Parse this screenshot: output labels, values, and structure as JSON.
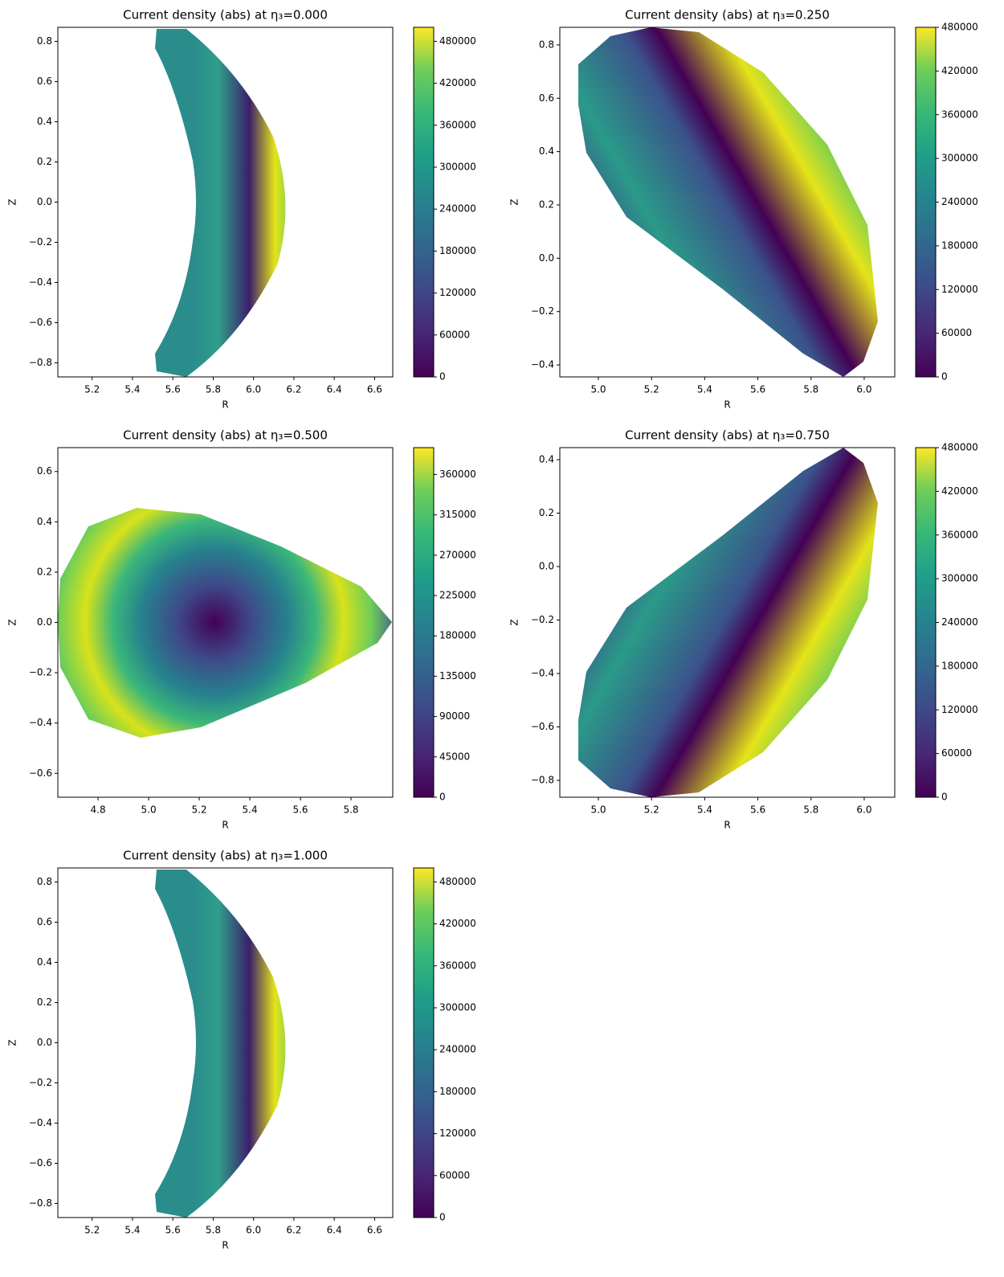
{
  "chart_data": [
    {
      "type": "contour",
      "title": "Current density (abs) at η₃=0.000",
      "xlabel": "R",
      "ylabel": "Z",
      "xlim": [
        5.03,
        6.69
      ],
      "ylim": [
        -0.87,
        0.87
      ],
      "xticks": [
        5.2,
        5.4,
        5.6,
        5.8,
        {
          "value": 6,
          "label": "6.0"
        },
        6.2,
        6.4,
        6.6
      ],
      "yticks": [
        {
          "value": -0.8,
          "label": "−0.8"
        },
        {
          "value": -0.6,
          "label": "−0.6"
        },
        {
          "value": -0.4,
          "label": "−0.4"
        },
        {
          "value": -0.2,
          "label": "−0.2"
        },
        {
          "value": 0,
          "label": "0.0"
        },
        0.2,
        0.4,
        0.6,
        0.8
      ],
      "clim": [
        0,
        500000
      ],
      "cticks": [
        0,
        60000,
        120000,
        180000,
        240000,
        300000,
        360000,
        420000,
        480000
      ]
    },
    {
      "type": "contour",
      "title": "Current density (abs) at η₃=0.250",
      "xlabel": "R",
      "ylabel": "Z",
      "xlim": [
        4.855,
        6.115
      ],
      "ylim": [
        -0.445,
        0.866
      ],
      "xticks": [
        {
          "value": 5,
          "label": "5.0"
        },
        5.2,
        5.4,
        5.6,
        5.8,
        {
          "value": 6,
          "label": "6.0"
        }
      ],
      "yticks": [
        {
          "value": -0.4,
          "label": "−0.4"
        },
        {
          "value": -0.2,
          "label": "−0.2"
        },
        {
          "value": 0,
          "label": "0.0"
        },
        0.2,
        0.4,
        0.6,
        0.8
      ],
      "clim": [
        0,
        480000
      ],
      "cticks": [
        0,
        60000,
        120000,
        180000,
        240000,
        300000,
        360000,
        420000,
        480000
      ]
    },
    {
      "type": "contour",
      "title": "Current density (abs) at η₃=0.500",
      "xlabel": "R",
      "ylabel": "Z",
      "xlim": [
        4.641,
        5.965
      ],
      "ylim": [
        -0.695,
        0.695
      ],
      "xticks": [
        4.8,
        {
          "value": 5,
          "label": "5.0"
        },
        5.2,
        5.4,
        5.6,
        5.8
      ],
      "yticks": [
        {
          "value": -0.6,
          "label": "−0.6"
        },
        {
          "value": -0.4,
          "label": "−0.4"
        },
        {
          "value": -0.2,
          "label": "−0.2"
        },
        {
          "value": 0,
          "label": "0.0"
        },
        0.2,
        0.4,
        0.6
      ],
      "clim": [
        0,
        390000
      ],
      "cticks": [
        0,
        45000,
        90000,
        135000,
        180000,
        225000,
        270000,
        315000,
        360000
      ]
    },
    {
      "type": "contour",
      "title": "Current density (abs) at η₃=0.750",
      "xlabel": "R",
      "ylabel": "Z",
      "xlim": [
        4.855,
        6.115
      ],
      "ylim": [
        -0.863,
        0.445
      ],
      "xticks": [
        {
          "value": 5,
          "label": "5.0"
        },
        5.2,
        5.4,
        5.6,
        5.8,
        {
          "value": 6,
          "label": "6.0"
        }
      ],
      "yticks": [
        {
          "value": -0.8,
          "label": "−0.8"
        },
        {
          "value": -0.6,
          "label": "−0.6"
        },
        {
          "value": -0.4,
          "label": "−0.4"
        },
        {
          "value": -0.2,
          "label": "−0.2"
        },
        {
          "value": 0,
          "label": "0.0"
        },
        0.2,
        0.4
      ],
      "clim": [
        0,
        480000
      ],
      "cticks": [
        0,
        60000,
        120000,
        180000,
        240000,
        300000,
        360000,
        420000,
        480000
      ]
    },
    {
      "type": "contour",
      "title": "Current density (abs) at η₃=1.000",
      "xlabel": "R",
      "ylabel": "Z",
      "xlim": [
        5.03,
        6.69
      ],
      "ylim": [
        -0.87,
        0.87
      ],
      "xticks": [
        5.2,
        5.4,
        5.6,
        5.8,
        {
          "value": 6,
          "label": "6.0"
        },
        6.2,
        6.4,
        6.6
      ],
      "yticks": [
        {
          "value": -0.8,
          "label": "−0.8"
        },
        {
          "value": -0.6,
          "label": "−0.6"
        },
        {
          "value": -0.4,
          "label": "−0.4"
        },
        {
          "value": -0.2,
          "label": "−0.2"
        },
        {
          "value": 0,
          "label": "0.0"
        },
        0.2,
        0.4,
        0.6,
        0.8
      ],
      "clim": [
        0,
        500000
      ],
      "cticks": [
        0,
        60000,
        120000,
        180000,
        240000,
        300000,
        360000,
        420000,
        480000
      ]
    }
  ]
}
